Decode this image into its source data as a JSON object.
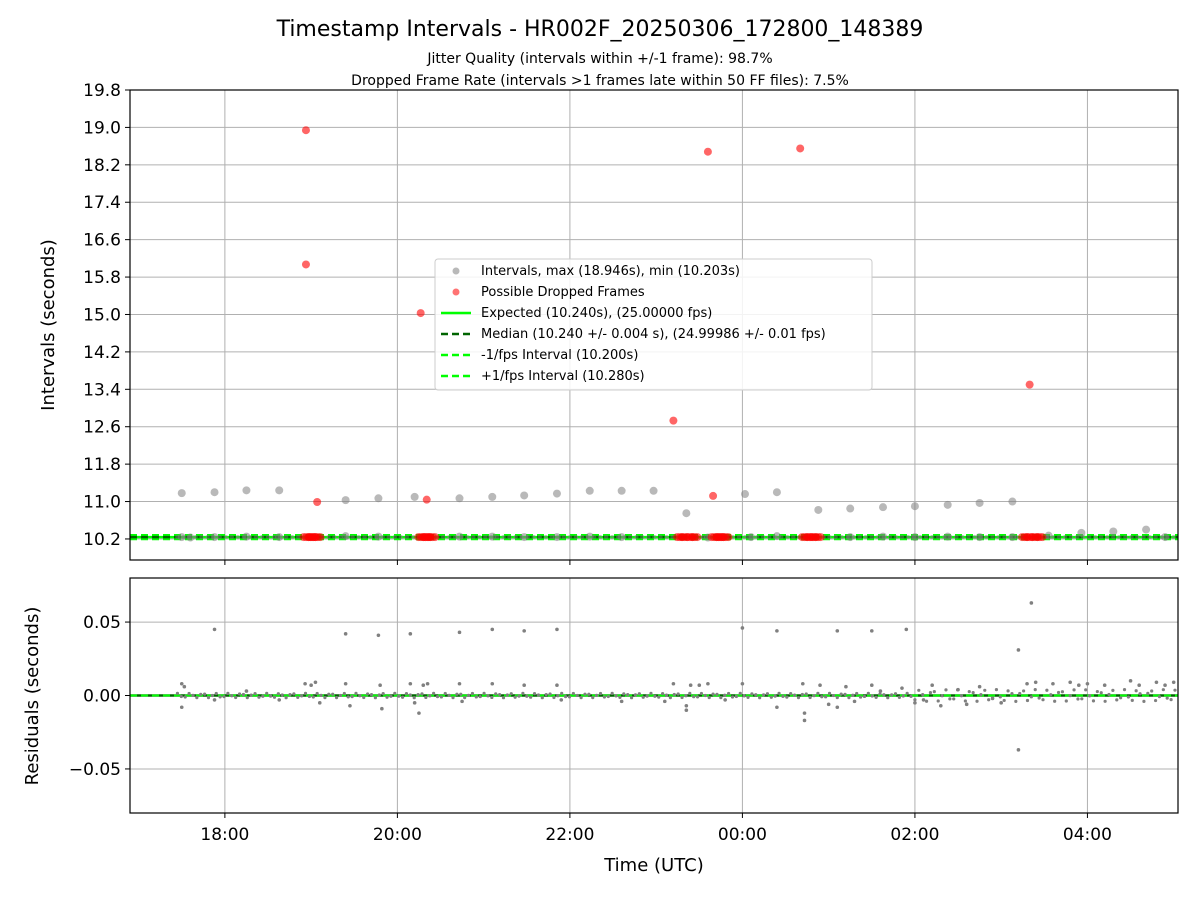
{
  "figure": {
    "title": "Timestamp Intervals - HR002F_20250306_172800_148389",
    "subtitle_line1": "Jitter Quality (intervals within +/-1 frame): 98.7%",
    "subtitle_line2": "Dropped Frame Rate (intervals >1 frames late within 50 FF files): 7.5%"
  },
  "colors": {
    "intervals": "#808080",
    "dropped": "#ff0000",
    "expected": "#00ff00",
    "median": "#006400",
    "grid": "#b0b0b0",
    "residuals": "#808080"
  },
  "chart_data": [
    {
      "type": "scatter",
      "title": "",
      "xlabel": "",
      "ylabel": "Intervals (seconds)",
      "xlim_hours": [
        16.9,
        29.05
      ],
      "ylim": [
        9.75,
        19.8
      ],
      "x_ticks_hours": [
        18,
        20,
        22,
        24,
        26,
        28
      ],
      "y_ticks": [
        10.2,
        11.0,
        11.8,
        12.6,
        13.4,
        14.2,
        15.0,
        15.8,
        16.6,
        17.4,
        18.2,
        19.0,
        19.8
      ],
      "y_tick_labels": [
        "10.2",
        "11.0",
        "11.8",
        "12.6",
        "13.4",
        "14.2",
        "15.0",
        "15.8",
        "16.6",
        "17.4",
        "18.2",
        "19.0",
        "19.8"
      ],
      "grid": true,
      "legend_position": "center",
      "series": [
        {
          "name": "Intervals, max (18.946s), min (10.203s)",
          "kind": "scatter",
          "color": "#808080",
          "points": [
            [
              17.5,
              11.18
            ],
            [
              17.88,
              11.2
            ],
            [
              18.25,
              11.24
            ],
            [
              18.63,
              11.24
            ],
            [
              19.4,
              11.03
            ],
            [
              19.78,
              11.07
            ],
            [
              20.2,
              11.1
            ],
            [
              20.72,
              11.07
            ],
            [
              21.1,
              11.1
            ],
            [
              21.47,
              11.13
            ],
            [
              21.85,
              11.17
            ],
            [
              22.23,
              11.23
            ],
            [
              22.6,
              11.23
            ],
            [
              22.97,
              11.23
            ],
            [
              23.35,
              10.75
            ],
            [
              24.03,
              11.16
            ],
            [
              24.4,
              11.2
            ],
            [
              24.88,
              10.82
            ],
            [
              25.25,
              10.85
            ],
            [
              25.63,
              10.88
            ],
            [
              26.0,
              10.9
            ],
            [
              26.38,
              10.93
            ],
            [
              26.75,
              10.97
            ],
            [
              27.13,
              11.0
            ],
            [
              27.93,
              10.33
            ],
            [
              28.3,
              10.36
            ],
            [
              28.68,
              10.4
            ],
            [
              17.5,
              10.24
            ],
            [
              17.6,
              10.23
            ],
            [
              17.88,
              10.24
            ],
            [
              18.25,
              10.25
            ],
            [
              18.63,
              10.24
            ],
            [
              19.4,
              10.26
            ],
            [
              19.78,
              10.25
            ],
            [
              20.72,
              10.25
            ],
            [
              21.1,
              10.25
            ],
            [
              21.47,
              10.24
            ],
            [
              21.85,
              10.24
            ],
            [
              22.23,
              10.25
            ],
            [
              22.6,
              10.24
            ],
            [
              23.6,
              10.23
            ],
            [
              24.1,
              10.24
            ],
            [
              24.4,
              10.26
            ],
            [
              25.25,
              10.24
            ],
            [
              25.63,
              10.25
            ],
            [
              26.0,
              10.24
            ],
            [
              26.38,
              10.25
            ],
            [
              26.75,
              10.24
            ],
            [
              27.13,
              10.24
            ],
            [
              27.55,
              10.27
            ],
            [
              28.9,
              10.24
            ]
          ]
        },
        {
          "name": "Possible Dropped Frames",
          "kind": "scatter",
          "color": "#ff0000",
          "points": [
            [
              18.94,
              18.94
            ],
            [
              18.94,
              16.07
            ],
            [
              19.07,
              10.99
            ],
            [
              20.27,
              15.03
            ],
            [
              20.34,
              11.04
            ],
            [
              23.2,
              12.73
            ],
            [
              23.6,
              18.48
            ],
            [
              23.66,
              11.12
            ],
            [
              24.67,
              18.55
            ],
            [
              27.33,
              13.5
            ],
            [
              18.97,
              10.24
            ],
            [
              19.05,
              10.24
            ],
            [
              20.3,
              10.24
            ],
            [
              20.38,
              10.24
            ],
            [
              23.3,
              10.24
            ],
            [
              23.42,
              10.24
            ],
            [
              23.7,
              10.24
            ],
            [
              23.78,
              10.24
            ],
            [
              24.75,
              10.24
            ],
            [
              24.85,
              10.24
            ],
            [
              27.3,
              10.24
            ],
            [
              27.42,
              10.24
            ]
          ]
        },
        {
          "name": "Expected (10.240s), (25.00000 fps)",
          "kind": "hline",
          "color": "#00ff00",
          "value": 10.24
        },
        {
          "name": "Median (10.240 +/- 0.004 s), (24.99986 +/- 0.01 fps)",
          "kind": "hline",
          "color": "#006400",
          "value": 10.24
        },
        {
          "name": "-1/fps Interval (10.200s)",
          "kind": "hline",
          "color": "#00ff00",
          "value": 10.2
        },
        {
          "name": "+1/fps Interval (10.280s)",
          "kind": "hline",
          "color": "#00ff00",
          "value": 10.28
        }
      ]
    },
    {
      "type": "scatter",
      "title": "",
      "xlabel": "Time (UTC)",
      "ylabel": "Residuals (seconds)",
      "xlim_hours": [
        16.9,
        29.05
      ],
      "ylim": [
        -0.08,
        0.08
      ],
      "x_ticks_hours": [
        18,
        20,
        22,
        24,
        26,
        28
      ],
      "x_tick_labels": [
        "18:00",
        "20:00",
        "22:00",
        "00:00",
        "02:00",
        "04:00"
      ],
      "y_ticks": [
        -0.05,
        0.0,
        0.05
      ],
      "y_tick_labels": [
        "−0.05",
        "0.00",
        "0.05"
      ],
      "grid": true,
      "series": [
        {
          "name": "",
          "kind": "scatter",
          "color": "#808080",
          "points": [
            [
              17.88,
              0.045
            ],
            [
              19.4,
              0.042
            ],
            [
              19.78,
              0.041
            ],
            [
              20.15,
              0.042
            ],
            [
              20.72,
              0.043
            ],
            [
              21.1,
              0.045
            ],
            [
              21.47,
              0.044
            ],
            [
              21.85,
              0.045
            ],
            [
              24.0,
              0.046
            ],
            [
              24.4,
              0.044
            ],
            [
              25.1,
              0.044
            ],
            [
              25.5,
              0.044
            ],
            [
              25.9,
              0.045
            ],
            [
              27.35,
              0.063
            ],
            [
              27.2,
              0.031
            ],
            [
              27.2,
              -0.037
            ],
            [
              17.5,
              0.008
            ],
            [
              17.5,
              -0.008
            ],
            [
              17.53,
              0.006
            ],
            [
              17.88,
              -0.003
            ],
            [
              18.25,
              0.003
            ],
            [
              18.63,
              -0.003
            ],
            [
              18.93,
              0.008
            ],
            [
              19.0,
              0.007
            ],
            [
              19.05,
              0.009
            ],
            [
              19.1,
              -0.005
            ],
            [
              19.4,
              0.008
            ],
            [
              19.45,
              -0.007
            ],
            [
              19.8,
              0.007
            ],
            [
              19.82,
              -0.009
            ],
            [
              20.15,
              0.008
            ],
            [
              20.2,
              -0.005
            ],
            [
              20.25,
              -0.012
            ],
            [
              20.3,
              0.007
            ],
            [
              20.35,
              0.008
            ],
            [
              20.72,
              0.008
            ],
            [
              20.75,
              -0.004
            ],
            [
              21.1,
              0.008
            ],
            [
              21.47,
              0.007
            ],
            [
              21.85,
              0.007
            ],
            [
              21.9,
              -0.003
            ],
            [
              22.6,
              -0.004
            ],
            [
              23.1,
              -0.004
            ],
            [
              23.35,
              -0.01
            ],
            [
              23.35,
              -0.007
            ],
            [
              23.2,
              0.008
            ],
            [
              23.4,
              0.007
            ],
            [
              23.5,
              0.007
            ],
            [
              23.6,
              0.008
            ],
            [
              23.8,
              -0.003
            ],
            [
              24.0,
              0.008
            ],
            [
              24.4,
              -0.008
            ],
            [
              24.7,
              0.008
            ],
            [
              24.72,
              -0.012
            ],
            [
              24.72,
              -0.017
            ],
            [
              24.9,
              0.007
            ],
            [
              25.0,
              -0.006
            ],
            [
              25.1,
              -0.008
            ],
            [
              25.2,
              0.006
            ],
            [
              25.3,
              -0.004
            ],
            [
              25.5,
              0.007
            ],
            [
              25.6,
              0.003
            ],
            [
              25.85,
              0.005
            ],
            [
              26.0,
              -0.005
            ],
            [
              26.1,
              -0.003
            ],
            [
              26.2,
              0.007
            ],
            [
              26.3,
              -0.007
            ],
            [
              26.5,
              0.004
            ],
            [
              26.6,
              -0.006
            ],
            [
              26.75,
              0.006
            ],
            [
              26.9,
              -0.002
            ],
            [
              27.0,
              -0.005
            ],
            [
              27.3,
              0.008
            ],
            [
              27.4,
              0.009
            ],
            [
              27.6,
              0.008
            ],
            [
              27.8,
              0.009
            ],
            [
              27.9,
              0.007
            ],
            [
              28.0,
              0.008
            ],
            [
              28.2,
              0.007
            ],
            [
              28.5,
              0.01
            ],
            [
              28.6,
              0.007
            ],
            [
              28.8,
              0.009
            ],
            [
              28.9,
              0.007
            ],
            [
              29.0,
              0.009
            ]
          ]
        },
        {
          "name": "",
          "kind": "hline",
          "color": "#00ff00",
          "value": 0.0
        }
      ]
    }
  ]
}
